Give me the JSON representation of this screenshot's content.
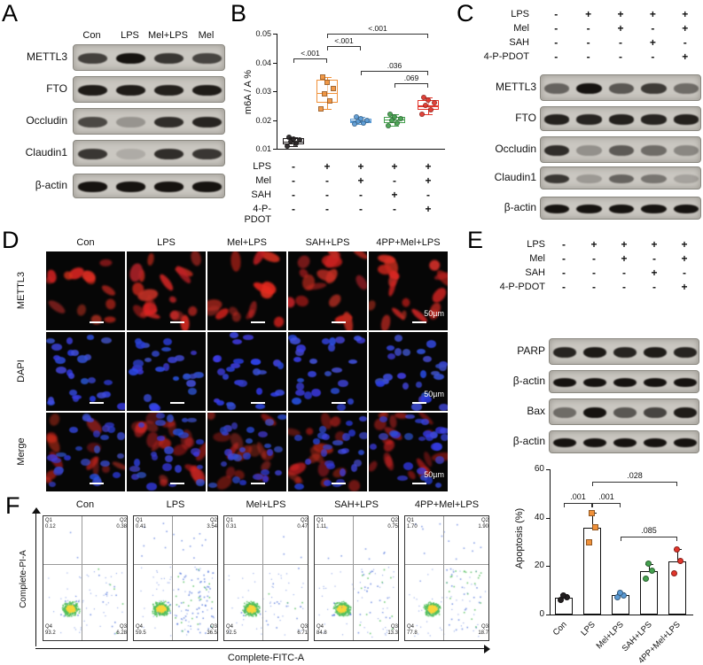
{
  "panelA": {
    "label": "A",
    "lanes": [
      "Con",
      "LPS",
      "Mel+LPS",
      "Mel"
    ],
    "blots": [
      {
        "name": "METTL3",
        "bands": [
          0.75,
          1.0,
          0.8,
          0.72
        ]
      },
      {
        "name": "FTO",
        "bands": [
          0.95,
          0.95,
          0.92,
          0.95
        ]
      },
      {
        "name": "Occludin",
        "bands": [
          0.7,
          0.28,
          0.85,
          0.9
        ]
      },
      {
        "name": "Claudin1",
        "bands": [
          0.8,
          0.15,
          0.85,
          0.8
        ]
      },
      {
        "name": "β-actin",
        "bands": [
          1,
          1,
          1,
          1
        ]
      }
    ]
  },
  "panelB": {
    "label": "B",
    "treatments": [
      {
        "name": "LPS",
        "signs": [
          "-",
          "+",
          "+",
          "+",
          "+"
        ]
      },
      {
        "name": "Mel",
        "signs": [
          "-",
          "-",
          "+",
          "-",
          "+"
        ]
      },
      {
        "name": "SAH",
        "signs": [
          "-",
          "-",
          "-",
          "+",
          "-"
        ]
      },
      {
        "name": "4-P-PDOT",
        "signs": [
          "-",
          "-",
          "-",
          "-",
          "+"
        ]
      }
    ]
  },
  "panelC": {
    "label": "C",
    "treatments": [
      {
        "name": "LPS",
        "signs": [
          "-",
          "+",
          "+",
          "+",
          "+"
        ]
      },
      {
        "name": "Mel",
        "signs": [
          "-",
          "-",
          "+",
          "-",
          "+"
        ]
      },
      {
        "name": "SAH",
        "signs": [
          "-",
          "-",
          "-",
          "+",
          "-"
        ]
      },
      {
        "name": "4-P-PDOT",
        "signs": [
          "-",
          "-",
          "-",
          "-",
          "+"
        ]
      }
    ],
    "blots": [
      {
        "name": "METTL3",
        "bands": [
          0.55,
          1.0,
          0.62,
          0.78,
          0.5
        ]
      },
      {
        "name": "FTO",
        "bands": [
          0.92,
          0.9,
          0.92,
          0.9,
          0.92
        ]
      },
      {
        "name": "Occludin",
        "bands": [
          0.85,
          0.3,
          0.6,
          0.5,
          0.35
        ]
      },
      {
        "name": "Claudin1",
        "bands": [
          0.8,
          0.25,
          0.55,
          0.45,
          0.2
        ]
      },
      {
        "name": "β-actin",
        "bands": [
          1,
          1,
          1,
          1,
          1
        ]
      }
    ]
  },
  "panelD": {
    "label": "D",
    "columns": [
      "Con",
      "LPS",
      "Mel+LPS",
      "SAH+LPS",
      "4PP+Mel+LPS"
    ],
    "rows": [
      "METTL3",
      "DAPI",
      "Merge"
    ],
    "scale_label": "50µm"
  },
  "panelE": {
    "label": "E",
    "treatments": [
      {
        "name": "LPS",
        "signs": [
          "-",
          "+",
          "+",
          "+",
          "+"
        ]
      },
      {
        "name": "Mel",
        "signs": [
          "-",
          "-",
          "+",
          "-",
          "+"
        ]
      },
      {
        "name": "SAH",
        "signs": [
          "-",
          "-",
          "-",
          "+",
          "-"
        ]
      },
      {
        "name": "4-P-PDOT",
        "signs": [
          "-",
          "-",
          "-",
          "-",
          "+"
        ]
      }
    ],
    "blots": [
      {
        "name": "PARP",
        "bands": [
          0.9,
          0.96,
          0.9,
          0.95,
          0.9
        ]
      },
      {
        "name": "β-actin",
        "bands": [
          1,
          1,
          1,
          1,
          1
        ]
      },
      {
        "name": "Bax",
        "bands": [
          0.5,
          1.0,
          0.62,
          0.72,
          0.95
        ]
      },
      {
        "name": "β-actin",
        "bands": [
          1,
          1,
          1,
          1,
          1
        ]
      }
    ]
  },
  "panelF": {
    "label": "F",
    "xlabel": "Complete-FITC-A",
    "ylabel": "Complete-PI-A",
    "plots": [
      {
        "title": "Con",
        "q1": "0.12",
        "q2": "0.38",
        "q3": "6.28",
        "q4": "93.2"
      },
      {
        "title": "LPS",
        "q1": "0.41",
        "q2": "3.54",
        "q3": "36.5",
        "q4": "59.5"
      },
      {
        "title": "Mel+LPS",
        "q1": "0.31",
        "q2": "0.47",
        "q3": "6.71",
        "q4": "92.5"
      },
      {
        "title": "SAH+LPS",
        "q1": "1.11",
        "q2": "0.75",
        "q3": "13.3",
        "q4": "84.8"
      },
      {
        "title": "4PP+Mel+LPS",
        "q1": "1.70",
        "q2": "1.90",
        "q3": "18.7",
        "q4": "77.8"
      }
    ]
  },
  "chart_data": [
    {
      "type": "scatter",
      "subtype": "box-with-points",
      "panel": "B",
      "ylabel": "m6A / A %",
      "ylim": [
        0.01,
        0.05
      ],
      "yticks": [
        0.01,
        0.02,
        0.03,
        0.04,
        0.05
      ],
      "categories": [
        "Con",
        "LPS",
        "Mel+LPS",
        "SAH+LPS",
        "4PP+Mel+LPS"
      ],
      "colors": [
        "#231f20",
        "#f0913a",
        "#5b9bd5",
        "#44a14e",
        "#e2352b"
      ],
      "markers": [
        "circle",
        "square",
        "circle",
        "circle",
        "circle"
      ],
      "points": [
        [
          0.011,
          0.012,
          0.0125,
          0.013,
          0.0135,
          0.014
        ],
        [
          0.024,
          0.0265,
          0.029,
          0.031,
          0.033,
          0.035
        ],
        [
          0.0185,
          0.019,
          0.0195,
          0.02,
          0.0205,
          0.021
        ],
        [
          0.018,
          0.019,
          0.02,
          0.0205,
          0.021,
          0.022
        ],
        [
          0.022,
          0.0235,
          0.025,
          0.026,
          0.027,
          0.028
        ]
      ],
      "box": [
        [
          0.0115,
          0.0125,
          0.0138
        ],
        [
          0.026,
          0.0295,
          0.034
        ],
        [
          0.019,
          0.0198,
          0.0205
        ],
        [
          0.019,
          0.0202,
          0.021
        ],
        [
          0.0235,
          0.025,
          0.027
        ]
      ],
      "significance": [
        {
          "a": 0,
          "b": 1,
          "label": "<.001"
        },
        {
          "a": 1,
          "b": 2,
          "label": "<.001"
        },
        {
          "a": 1,
          "b": 4,
          "label": "<.001"
        },
        {
          "a": 2,
          "b": 4,
          "label": ".036"
        },
        {
          "a": 3,
          "b": 4,
          "label": ".069"
        }
      ]
    },
    {
      "type": "bar",
      "panel": "E",
      "ylabel": "Apoptosis (%)",
      "ylim": [
        0,
        60
      ],
      "yticks": [
        0,
        20,
        40,
        60
      ],
      "categories": [
        "Con",
        "LPS",
        "Mel+LPS",
        "SAH+LPS",
        "4PP+Mel+LPS"
      ],
      "values": [
        7,
        36,
        8,
        18,
        22
      ],
      "errors": [
        1.5,
        6,
        1,
        3,
        5
      ],
      "points": [
        [
          6,
          7,
          8
        ],
        [
          30,
          36,
          42
        ],
        [
          7,
          8,
          9
        ],
        [
          15,
          18,
          21
        ],
        [
          17,
          22,
          27
        ]
      ],
      "colors": [
        "#231f20",
        "#f0913a",
        "#5b9bd5",
        "#44a14e",
        "#e2352b"
      ],
      "markers": [
        "circle",
        "square",
        "circle",
        "circle",
        "circle"
      ],
      "significance": [
        {
          "a": 0,
          "b": 1,
          "label": ".001"
        },
        {
          "a": 1,
          "b": 2,
          "label": ".001"
        },
        {
          "a": 1,
          "b": 4,
          "label": ".028"
        },
        {
          "a": 2,
          "b": 4,
          "label": ".085"
        }
      ]
    }
  ]
}
